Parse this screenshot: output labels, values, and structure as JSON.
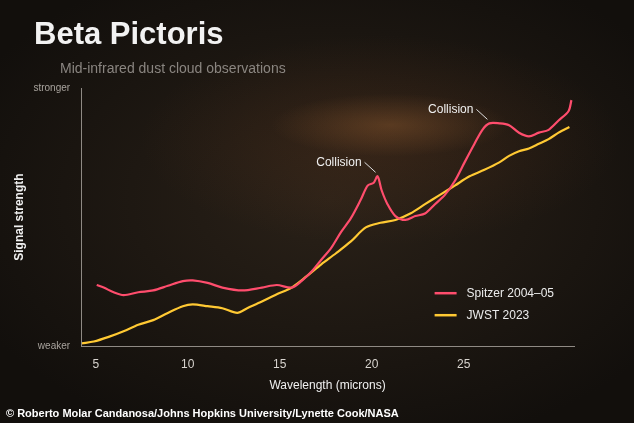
{
  "chart_data": {
    "type": "line",
    "title": "Beta Pictoris",
    "subtitle": "Mid-infrared dust cloud observations",
    "x_label": "Wavelength (microns)",
    "y_label": "Signal strength",
    "xlim": [
      4.2,
      31
    ],
    "xticks": [
      5,
      10,
      15,
      20,
      25
    ],
    "ylim": [
      0,
      100
    ],
    "yticks": [
      {
        "value": 0,
        "label": "weaker"
      },
      {
        "value": 100,
        "label": "stronger"
      }
    ],
    "grid": false,
    "legend": "lower right",
    "marker": "none",
    "series": [
      {
        "name": "Spitzer 2004–05",
        "color": "#ff4d6d",
        "x": [
          5.05,
          5.43,
          5.97,
          6.51,
          7.31,
          8.12,
          8.92,
          9.73,
          10.27,
          11.08,
          11.88,
          12.96,
          14.03,
          14.84,
          15.65,
          16.18,
          16.72,
          17.26,
          17.8,
          18.33,
          18.87,
          19.41,
          19.78,
          20.11,
          20.32,
          20.54,
          20.86,
          21.29,
          21.83,
          22.37,
          22.9,
          23.44,
          23.98,
          24.52,
          25.05,
          25.59,
          26.02,
          26.4,
          26.94,
          27.47,
          28.01,
          28.55,
          29.09,
          29.62,
          30.16,
          30.7,
          30.86
        ],
        "values": [
          23.7,
          22.7,
          20.9,
          19.8,
          20.9,
          21.6,
          23.4,
          25.2,
          25.5,
          24.5,
          22.7,
          21.6,
          22.7,
          23.7,
          22.7,
          25.2,
          28.8,
          33.5,
          38.1,
          44.2,
          49.6,
          56.8,
          62.2,
          63.3,
          65.8,
          60.4,
          55.0,
          50.4,
          48.9,
          50.4,
          51.4,
          55.0,
          58.6,
          64.0,
          71.2,
          78.4,
          83.8,
          86.3,
          86.3,
          85.6,
          82.7,
          81.3,
          82.7,
          83.8,
          87.4,
          91.0,
          95.3
        ]
      },
      {
        "name": "JWST 2023",
        "color": "#ffc933",
        "x": [
          4.25,
          4.89,
          5.7,
          6.51,
          7.31,
          8.12,
          8.92,
          9.73,
          10.27,
          11.08,
          11.88,
          12.69,
          13.23,
          14.03,
          14.84,
          15.65,
          16.45,
          17.26,
          18.06,
          18.87,
          19.68,
          20.48,
          21.29,
          22.1,
          22.9,
          23.71,
          24.52,
          25.32,
          26.13,
          26.94,
          27.47,
          28.01,
          28.55,
          29.09,
          29.62,
          30.16,
          30.75
        ],
        "values": [
          1.1,
          1.8,
          3.6,
          5.8,
          8.3,
          10.1,
          12.9,
          15.5,
          16.2,
          15.5,
          14.7,
          12.9,
          14.7,
          17.3,
          20.1,
          22.7,
          27.0,
          31.7,
          36.0,
          40.6,
          46.0,
          47.8,
          48.9,
          51.4,
          55.0,
          58.6,
          62.2,
          65.8,
          68.3,
          71.2,
          73.7,
          75.5,
          76.6,
          78.4,
          80.2,
          82.7,
          84.9
        ]
      }
    ],
    "annotations": [
      {
        "text": "Collision",
        "x": 20.32,
        "y": 65.8
      },
      {
        "text": "Collision",
        "x": 26.4,
        "y": 86.3
      }
    ],
    "credit": "© Roberto Molar Candanosa/Johns Hopkins University/Lynette Cook/NASA"
  }
}
